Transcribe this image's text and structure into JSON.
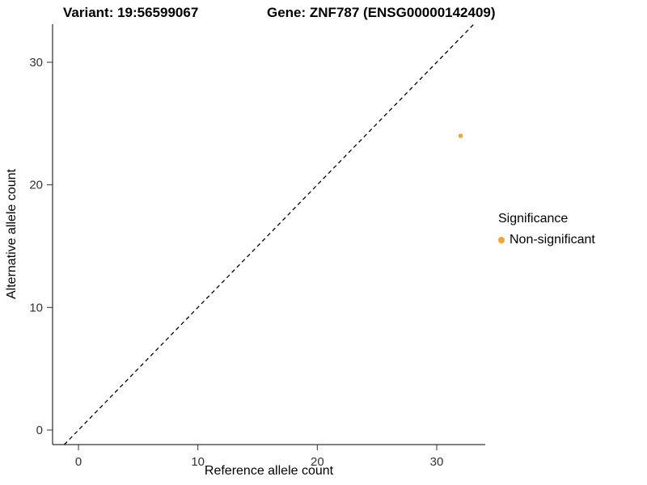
{
  "chart_data": {
    "type": "scatter",
    "title_left": "Variant: 19:56599067",
    "title_right": "Gene: ZNF787 (ENSG00000142409)",
    "xlabel": "Reference allele count",
    "ylabel": "Alternative allele count",
    "x_ticks": [
      0,
      10,
      20,
      30
    ],
    "y_ticks": [
      0,
      10,
      20,
      30
    ],
    "xlim": [
      -2.2,
      34.1
    ],
    "ylim": [
      -1.2,
      33.1
    ],
    "grid": false,
    "background": "#ffffff",
    "axis_color": "#000000",
    "tick_label_color": "#333333",
    "identity_line": {
      "type": "y=x",
      "style": "dashed",
      "color": "#000000"
    },
    "series": [
      {
        "name": "Non-significant",
        "color": "#F8A42C",
        "points": [
          {
            "x": 32,
            "y": 24
          }
        ]
      }
    ],
    "legend": {
      "title": "Significance",
      "position": "right",
      "entries": [
        {
          "label": "Non-significant",
          "color": "#F8A42C"
        }
      ]
    }
  }
}
